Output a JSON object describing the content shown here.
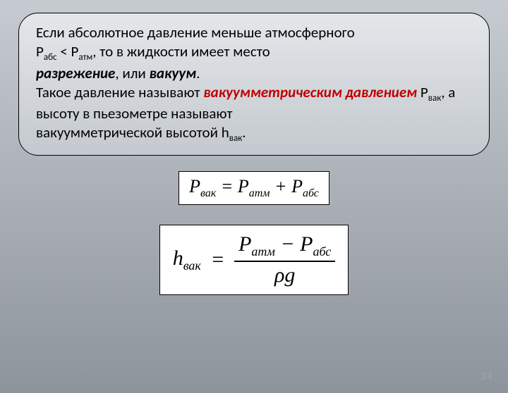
{
  "textBox": {
    "line1_a": "Если абсолютное давление  меньше  атмосферного",
    "line2_a": "Р",
    "line2_sub1": "абс",
    "line2_b": " < Р",
    "line2_sub2": "атм",
    "line2_c": ",  то  в  жидкости имеет  место",
    "line3_em": "разрежение",
    "line3_a": ", или  ",
    "line3_em2": "вакуум",
    "line3_b": ".",
    "line4_a": "Такое давление  называют  ",
    "line4_red": "вакуумметрическим давлением",
    "line4_b": " Р",
    "line4_sub": "вак",
    "line4_c": ", а высоту в пьезометре называют",
    "line5_a": "вакуумметрической  высотой  h",
    "line5_sub": "вак",
    "line5_b": "."
  },
  "formula1": {
    "P": "P",
    "sub_vak": "вак",
    "eq": " = ",
    "sub_atm": "атм",
    "plus": " + ",
    "sub_abs": "абс"
  },
  "formula2": {
    "h": "h",
    "sub_vak": "вак",
    "eq": "=",
    "P": "P",
    "sub_atm": "атм",
    "minus": " − ",
    "sub_abs": "абс",
    "rho": "ρ",
    "g": "g"
  },
  "pageNumber": "24",
  "colors": {
    "bg_top": "#c6cbd1",
    "bg_bottom": "#8e949c",
    "box_top": "#e4e7ea",
    "box_bottom": "#c4c9cf",
    "text": "#000000",
    "red": "#c00000",
    "pagenum": "#9fa4ab",
    "formula_bg": "#ffffff"
  }
}
